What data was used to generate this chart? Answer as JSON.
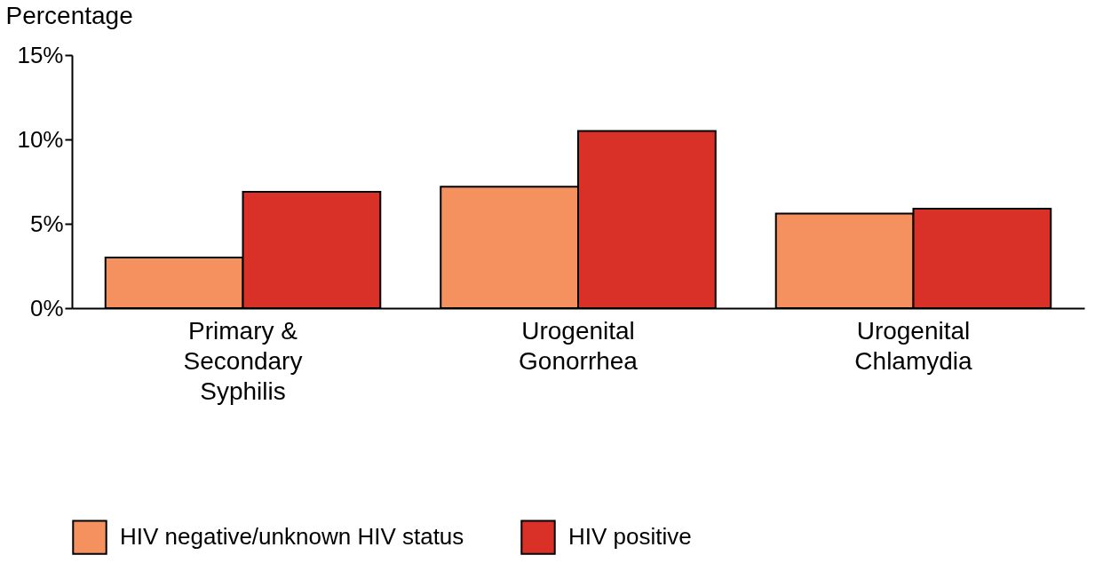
{
  "chart_data": {
    "type": "bar",
    "ylabel": "Percentage",
    "categories": [
      "Primary & Secondary Syphilis",
      "Urogenital Gonorrhea",
      "Urogenital Chlamydia"
    ],
    "series": [
      {
        "name": "HIV negative/unknown HIV status",
        "color": "#f4915e",
        "values": [
          3.0,
          7.2,
          5.6
        ]
      },
      {
        "name": "HIV positive",
        "color": "#d93027",
        "values": [
          6.9,
          10.5,
          5.9
        ]
      }
    ],
    "ylim": [
      0,
      15
    ],
    "yticks": [
      {
        "value": 0,
        "label": "0%"
      },
      {
        "value": 5,
        "label": "5%"
      },
      {
        "value": 10,
        "label": "10%"
      },
      {
        "value": 15,
        "label": "15%"
      }
    ],
    "grid": false,
    "legend": "bottom"
  }
}
